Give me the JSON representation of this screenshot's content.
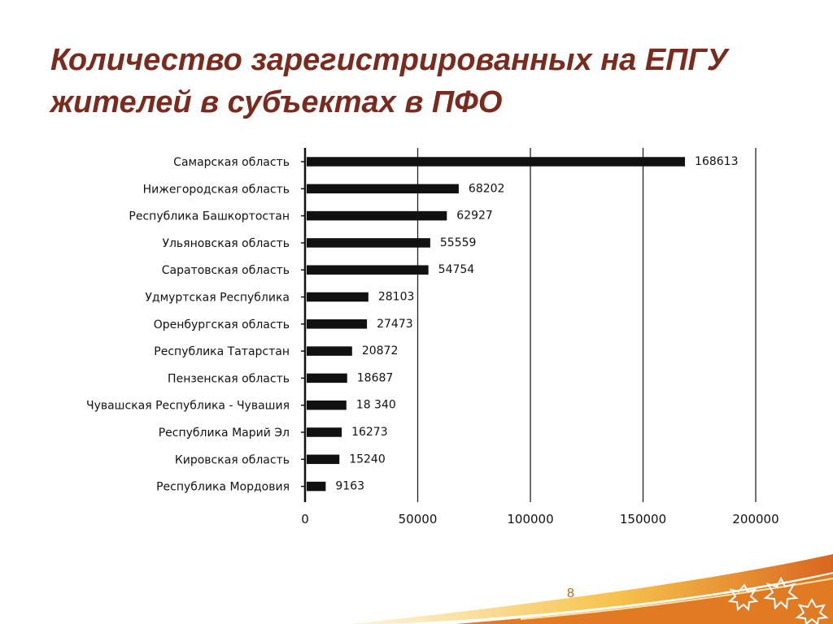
{
  "slide": {
    "title_line1": "Количество зарегистрированных на ЕПГУ",
    "title_line2": "жителей в субъектах в ПФО",
    "page_number": "8"
  },
  "colors": {
    "title": "#7b2a1e",
    "bar": "#111111",
    "page_number": "#b5651d",
    "swoosh_dark": "#d9661f",
    "swoosh_light": "#f6c043"
  },
  "chart_data": {
    "type": "bar",
    "orientation": "horizontal",
    "categories": [
      "Самарская область",
      "Нижегородская область",
      "Республика Башкортостан",
      "Ульяновская область",
      "Саратовская область",
      "Удмуртская Республика",
      "Оренбургская область",
      "Республика Татарстан",
      "Пензенская область",
      "Чувашская Республика - Чувашия",
      "Республика Марий Эл",
      "Кировская область",
      "Республика Мордовия"
    ],
    "values": [
      168613,
      68202,
      62927,
      55559,
      54754,
      28103,
      27473,
      20872,
      18687,
      18340,
      16273,
      15240,
      9163
    ],
    "value_labels": [
      "168613",
      "68202",
      "62927",
      "55559",
      "54754",
      "28103",
      "27473",
      "20872",
      "18687",
      "18 340",
      "16273",
      "15240",
      "9163"
    ],
    "x_ticks": [
      0,
      50000,
      100000,
      150000,
      200000
    ],
    "x_tick_labels": [
      "0",
      "50000",
      "100000",
      "150000",
      "200000"
    ],
    "xlim": [
      0,
      200000
    ],
    "grid": "vertical",
    "legend": "none"
  }
}
